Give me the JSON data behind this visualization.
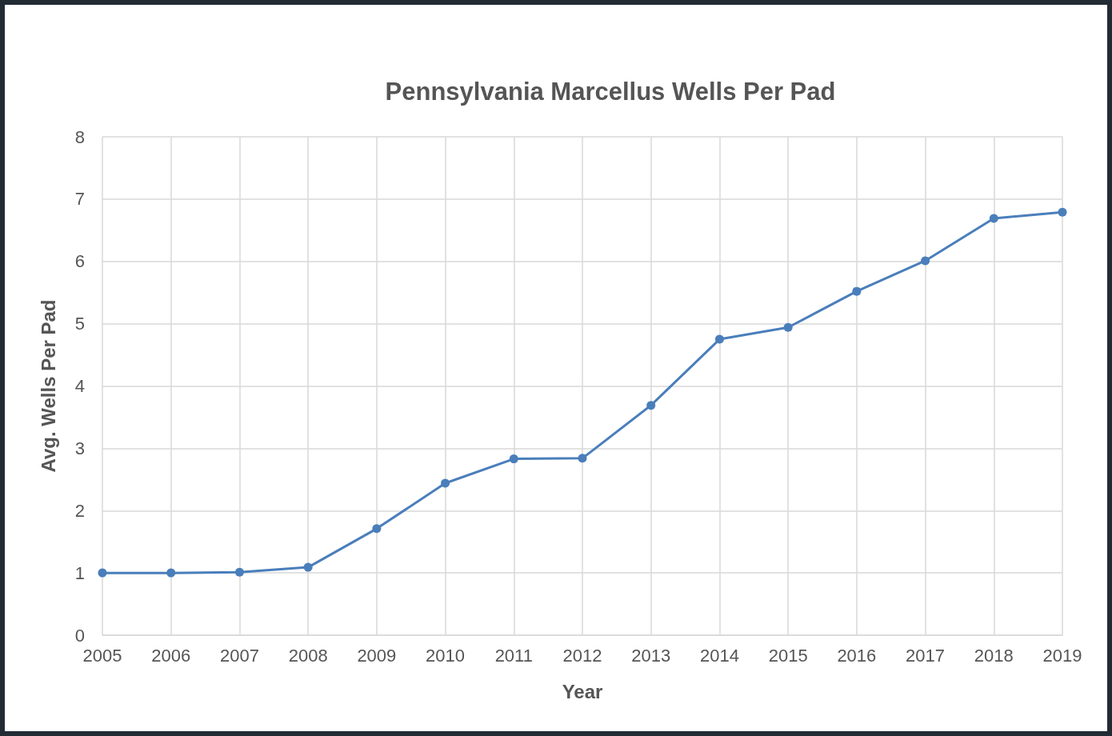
{
  "chart_data": {
    "type": "line",
    "title": "Pennsylvania Marcellus Wells Per Pad",
    "xlabel": "Year",
    "ylabel": "Avg. Wells Per Pad",
    "x": [
      2005,
      2006,
      2007,
      2008,
      2009,
      2010,
      2011,
      2012,
      2013,
      2014,
      2015,
      2016,
      2017,
      2018,
      2019
    ],
    "series": [
      {
        "color": "#4a7ebb",
        "values": [
          1.0,
          1.0,
          1.01,
          1.09,
          1.71,
          2.44,
          2.83,
          2.84,
          3.69,
          4.75,
          4.94,
          5.52,
          6.01,
          6.69,
          6.79
        ]
      }
    ],
    "xlim": [
      2005,
      2019
    ],
    "xticks": [
      2005,
      2006,
      2007,
      2008,
      2009,
      2010,
      2011,
      2012,
      2013,
      2014,
      2015,
      2016,
      2017,
      2018,
      2019
    ],
    "ylim": [
      0,
      8
    ],
    "yticks": [
      0,
      1,
      2,
      3,
      4,
      5,
      6,
      7,
      8
    ],
    "grid": true,
    "marker": "circle",
    "line_style": "solid"
  }
}
